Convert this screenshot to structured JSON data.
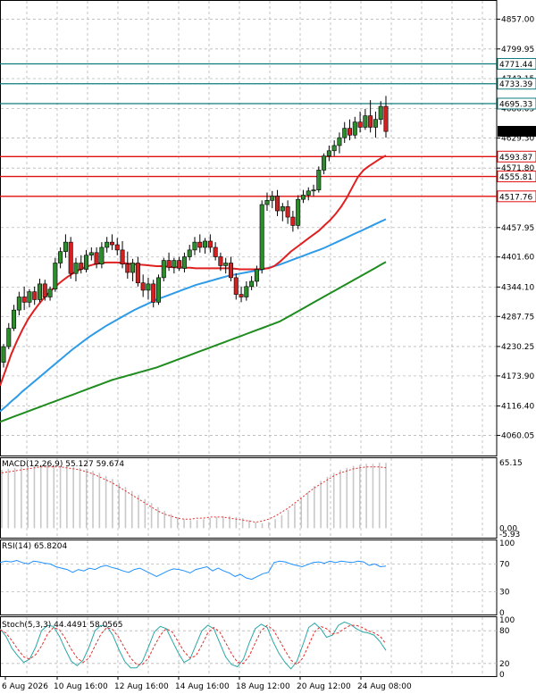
{
  "chart_data": {
    "type": "candlestick",
    "symbol_hint": "",
    "x_axis": {
      "ticks": [
        "6 Aug 2026",
        "10 Aug 16:00",
        "12 Aug 16:00",
        "14 Aug 16:00",
        "18 Aug 12:00",
        "20 Aug 12:00",
        "24 Aug 08:00"
      ]
    },
    "price_panel": {
      "ylim": [
        4030,
        4880
      ],
      "y_ticks": [
        "4857.00",
        "4799.95",
        "4743.15",
        "4686.05",
        "4629.30",
        "4571.80",
        "4457.95",
        "4401.60",
        "4344.10",
        "4287.75",
        "4230.25",
        "4173.90",
        "4116.40",
        "4060.05"
      ],
      "current_price": "4642.28",
      "levels": [
        {
          "label": "4771.44",
          "value": 4771.44,
          "color": "#0e7c7b"
        },
        {
          "label": "4733.39",
          "value": 4733.39,
          "color": "#0e7c7b"
        },
        {
          "label": "4695.33",
          "value": 4695.33,
          "color": "#0e7c7b"
        },
        {
          "label": "4593.87",
          "value": 4593.87,
          "color": "#e01010"
        },
        {
          "label": "4555.81",
          "value": 4555.81,
          "color": "#e01010"
        },
        {
          "label": "4517.76",
          "value": 4517.76,
          "color": "#e01010"
        }
      ],
      "candles": [
        [
          4200,
          4235,
          4190,
          4230
        ],
        [
          4230,
          4275,
          4225,
          4265
        ],
        [
          4265,
          4310,
          4260,
          4300
        ],
        [
          4300,
          4335,
          4290,
          4325
        ],
        [
          4325,
          4345,
          4300,
          4315
        ],
        [
          4315,
          4340,
          4305,
          4335
        ],
        [
          4335,
          4345,
          4310,
          4320
        ],
        [
          4320,
          4360,
          4315,
          4350
        ],
        [
          4350,
          4358,
          4318,
          4325
        ],
        [
          4325,
          4345,
          4318,
          4340
        ],
        [
          4340,
          4400,
          4335,
          4390
        ],
        [
          4390,
          4420,
          4380,
          4412
        ],
        [
          4412,
          4445,
          4400,
          4430
        ],
        [
          4430,
          4440,
          4360,
          4370
        ],
        [
          4370,
          4400,
          4355,
          4390
        ],
        [
          4390,
          4405,
          4370,
          4378
        ],
        [
          4378,
          4415,
          4372,
          4405
        ],
        [
          4405,
          4420,
          4395,
          4410
        ],
        [
          4410,
          4420,
          4380,
          4388
        ],
        [
          4388,
          4430,
          4380,
          4420
        ],
        [
          4420,
          4440,
          4410,
          4430
        ],
        [
          4430,
          4445,
          4415,
          4425
        ],
        [
          4425,
          4438,
          4405,
          4415
        ],
        [
          4415,
          4432,
          4380,
          4388
        ],
        [
          4388,
          4412,
          4360,
          4372
        ],
        [
          4372,
          4398,
          4355,
          4390
        ],
        [
          4390,
          4402,
          4345,
          4352
        ],
        [
          4352,
          4368,
          4325,
          4338
        ],
        [
          4338,
          4362,
          4320,
          4350
        ],
        [
          4350,
          4358,
          4305,
          4315
        ],
        [
          4315,
          4368,
          4310,
          4362
        ],
        [
          4362,
          4400,
          4355,
          4395
        ],
        [
          4395,
          4410,
          4375,
          4382
        ],
        [
          4382,
          4400,
          4370,
          4395
        ],
        [
          4395,
          4402,
          4375,
          4380
        ],
        [
          4380,
          4410,
          4372,
          4402
        ],
        [
          4402,
          4425,
          4395,
          4415
        ],
        [
          4415,
          4440,
          4405,
          4430
        ],
        [
          4430,
          4445,
          4410,
          4420
        ],
        [
          4420,
          4438,
          4408,
          4432
        ],
        [
          4432,
          4445,
          4410,
          4420
        ],
        [
          4420,
          4430,
          4395,
          4402
        ],
        [
          4402,
          4410,
          4375,
          4385
        ],
        [
          4385,
          4400,
          4370,
          4390
        ],
        [
          4390,
          4402,
          4355,
          4362
        ],
        [
          4362,
          4370,
          4320,
          4330
        ],
        [
          4330,
          4345,
          4315,
          4325
        ],
        [
          4325,
          4355,
          4318,
          4345
        ],
        [
          4345,
          4365,
          4338,
          4355
        ],
        [
          4355,
          4385,
          4345,
          4378
        ],
        [
          4378,
          4510,
          4370,
          4502
        ],
        [
          4502,
          4525,
          4490,
          4510
        ],
        [
          4510,
          4528,
          4495,
          4518
        ],
        [
          4518,
          4530,
          4480,
          4490
        ],
        [
          4490,
          4505,
          4470,
          4498
        ],
        [
          4498,
          4510,
          4465,
          4478
        ],
        [
          4478,
          4490,
          4450,
          4462
        ],
        [
          4462,
          4520,
          4455,
          4512
        ],
        [
          4512,
          4530,
          4505,
          4520
        ],
        [
          4520,
          4535,
          4510,
          4528
        ],
        [
          4528,
          4540,
          4518,
          4530
        ],
        [
          4530,
          4575,
          4525,
          4568
        ],
        [
          4568,
          4600,
          4560,
          4595
        ],
        [
          4595,
          4615,
          4585,
          4605
        ],
        [
          4605,
          4625,
          4595,
          4615
        ],
        [
          4615,
          4640,
          4600,
          4630
        ],
        [
          4630,
          4660,
          4620,
          4648
        ],
        [
          4648,
          4665,
          4625,
          4635
        ],
        [
          4635,
          4670,
          4628,
          4660
        ],
        [
          4660,
          4680,
          4640,
          4650
        ],
        [
          4650,
          4685,
          4645,
          4672
        ],
        [
          4672,
          4702,
          4640,
          4650
        ],
        [
          4650,
          4680,
          4630,
          4665
        ],
        [
          4665,
          4700,
          4655,
          4690
        ],
        [
          4690,
          4710,
          4630,
          4642
        ]
      ],
      "ma_fast": [
        4155,
        4185,
        4215,
        4240,
        4262,
        4282,
        4298,
        4312,
        4325,
        4336,
        4346,
        4355,
        4363,
        4370,
        4376,
        4381,
        4385,
        4388,
        4390,
        4391,
        4391,
        4391,
        4390,
        4389,
        4388,
        4387,
        4386,
        4385,
        4384,
        4384,
        4383,
        4382,
        4382,
        4381,
        4381,
        4380,
        4380,
        4380,
        4380,
        4380,
        4380,
        4380,
        4379,
        4378,
        4378,
        4378,
        4378,
        4379,
        4380,
        4384,
        4392,
        4402,
        4412,
        4420,
        4428,
        4436,
        4444,
        4452,
        4462,
        4472,
        4484,
        4498,
        4515,
        4535,
        4555,
        4568,
        4576,
        4583,
        4590,
        4596
      ],
      "ma_mid": [
        4106,
        4115,
        4125,
        4134,
        4144,
        4153,
        4162,
        4171,
        4180,
        4189,
        4198,
        4207,
        4216,
        4225,
        4233,
        4241,
        4249,
        4256,
        4263,
        4270,
        4276,
        4282,
        4288,
        4294,
        4300,
        4305,
        4310,
        4315,
        4320,
        4324,
        4328,
        4332,
        4336,
        4340,
        4344,
        4348,
        4351,
        4354,
        4357,
        4360,
        4363,
        4366,
        4368,
        4370,
        4372,
        4374,
        4376,
        4378,
        4381,
        4384,
        4387,
        4391,
        4395,
        4399,
        4403,
        4407,
        4411,
        4415,
        4419,
        4424,
        4429,
        4434,
        4439,
        4444,
        4449,
        4454,
        4459,
        4464,
        4469,
        4474
      ],
      "ma_slow": [
        4086,
        4090,
        4094,
        4098,
        4102,
        4106,
        4110,
        4114,
        4118,
        4122,
        4126,
        4130,
        4134,
        4138,
        4142,
        4146,
        4150,
        4154,
        4158,
        4162,
        4166,
        4169,
        4172,
        4175,
        4178,
        4181,
        4184,
        4187,
        4190,
        4194,
        4198,
        4202,
        4206,
        4210,
        4214,
        4218,
        4222,
        4226,
        4230,
        4234,
        4238,
        4242,
        4246,
        4250,
        4254,
        4258,
        4262,
        4266,
        4270,
        4274,
        4278,
        4284,
        4290,
        4296,
        4302,
        4308,
        4314,
        4320,
        4326,
        4332,
        4338,
        4344,
        4350,
        4356,
        4362,
        4368,
        4374,
        4380,
        4386,
        4392
      ]
    },
    "macd_panel": {
      "label": "MACD(12,26,9) 55.127 59.674",
      "y_ticks": [
        "65.15",
        "0.00",
        "-5.93"
      ],
      "ylim": [
        -5.93,
        65.15
      ],
      "hist": [
        58,
        59,
        60,
        61,
        62,
        62,
        63,
        63,
        63,
        62,
        62,
        61,
        60,
        59,
        57,
        55,
        52,
        49,
        45,
        41,
        37,
        33,
        29,
        25,
        21,
        17,
        14,
        11,
        9,
        8,
        8,
        9,
        10,
        11,
        12,
        12,
        11,
        10,
        8,
        6,
        5,
        6,
        9,
        13,
        18,
        24,
        30,
        36,
        42,
        47,
        51,
        55,
        58,
        60,
        62,
        63,
        64,
        64,
        65,
        65
      ],
      "signal": [
        55,
        56,
        57,
        58,
        59,
        60,
        61,
        61,
        61,
        61,
        60,
        59,
        58,
        56,
        54,
        51,
        48,
        45,
        41,
        37,
        33,
        29,
        25,
        21,
        17,
        14,
        12,
        10,
        9,
        9,
        10,
        10,
        11,
        11,
        11,
        10,
        9,
        8,
        7,
        6,
        7,
        9,
        12,
        16,
        20,
        25,
        30,
        35,
        40,
        44,
        48,
        52,
        55,
        57,
        59,
        60,
        61,
        61,
        61,
        60
      ]
    },
    "rsi_panel": {
      "label": "RSI(14) 65.8204",
      "y_ticks": [
        "100",
        "70",
        "30",
        "0"
      ],
      "ylim": [
        0,
        100
      ],
      "levels": [
        70,
        30
      ],
      "values": [
        72,
        74,
        73,
        75,
        72,
        70,
        74,
        73,
        71,
        70,
        66,
        64,
        62,
        58,
        62,
        60,
        64,
        62,
        66,
        68,
        65,
        63,
        60,
        58,
        62,
        64,
        60,
        56,
        52,
        56,
        60,
        63,
        62,
        60,
        57,
        62,
        64,
        66,
        60,
        64,
        60,
        57,
        52,
        55,
        50,
        48,
        52,
        56,
        58,
        72,
        74,
        73,
        70,
        68,
        66,
        69,
        72,
        73,
        71,
        74,
        72,
        74,
        73,
        72,
        74,
        73,
        68,
        70,
        66,
        67
      ],
      "color": "#1e90ff"
    },
    "stoch_panel": {
      "label": "Stoch(5,3,3) 44.4491 58.0565",
      "y_ticks": [
        "100",
        "80",
        "20",
        "0"
      ],
      "ylim": [
        0,
        100
      ],
      "levels": [
        80,
        20
      ],
      "main": [
        84,
        70,
        48,
        34,
        22,
        28,
        50,
        80,
        90,
        88,
        70,
        46,
        24,
        16,
        26,
        50,
        80,
        90,
        88,
        72,
        46,
        24,
        12,
        12,
        24,
        50,
        78,
        88,
        84,
        62,
        40,
        22,
        28,
        54,
        80,
        90,
        84,
        58,
        32,
        18,
        14,
        28,
        58,
        84,
        92,
        86,
        60,
        38,
        22,
        10,
        24,
        54,
        86,
        94,
        84,
        68,
        72,
        90,
        96,
        92,
        84,
        78,
        76,
        72,
        60,
        44
      ],
      "signal": [
        82,
        76,
        62,
        46,
        32,
        28,
        36,
        52,
        74,
        86,
        82,
        66,
        46,
        30,
        22,
        30,
        52,
        74,
        86,
        82,
        68,
        48,
        30,
        18,
        18,
        30,
        52,
        72,
        84,
        78,
        60,
        42,
        30,
        34,
        54,
        76,
        86,
        78,
        58,
        38,
        22,
        20,
        34,
        58,
        80,
        90,
        82,
        64,
        44,
        26,
        18,
        30,
        54,
        78,
        88,
        84,
        74,
        76,
        84,
        90,
        90,
        86,
        80,
        76,
        70,
        56
      ]
    }
  }
}
